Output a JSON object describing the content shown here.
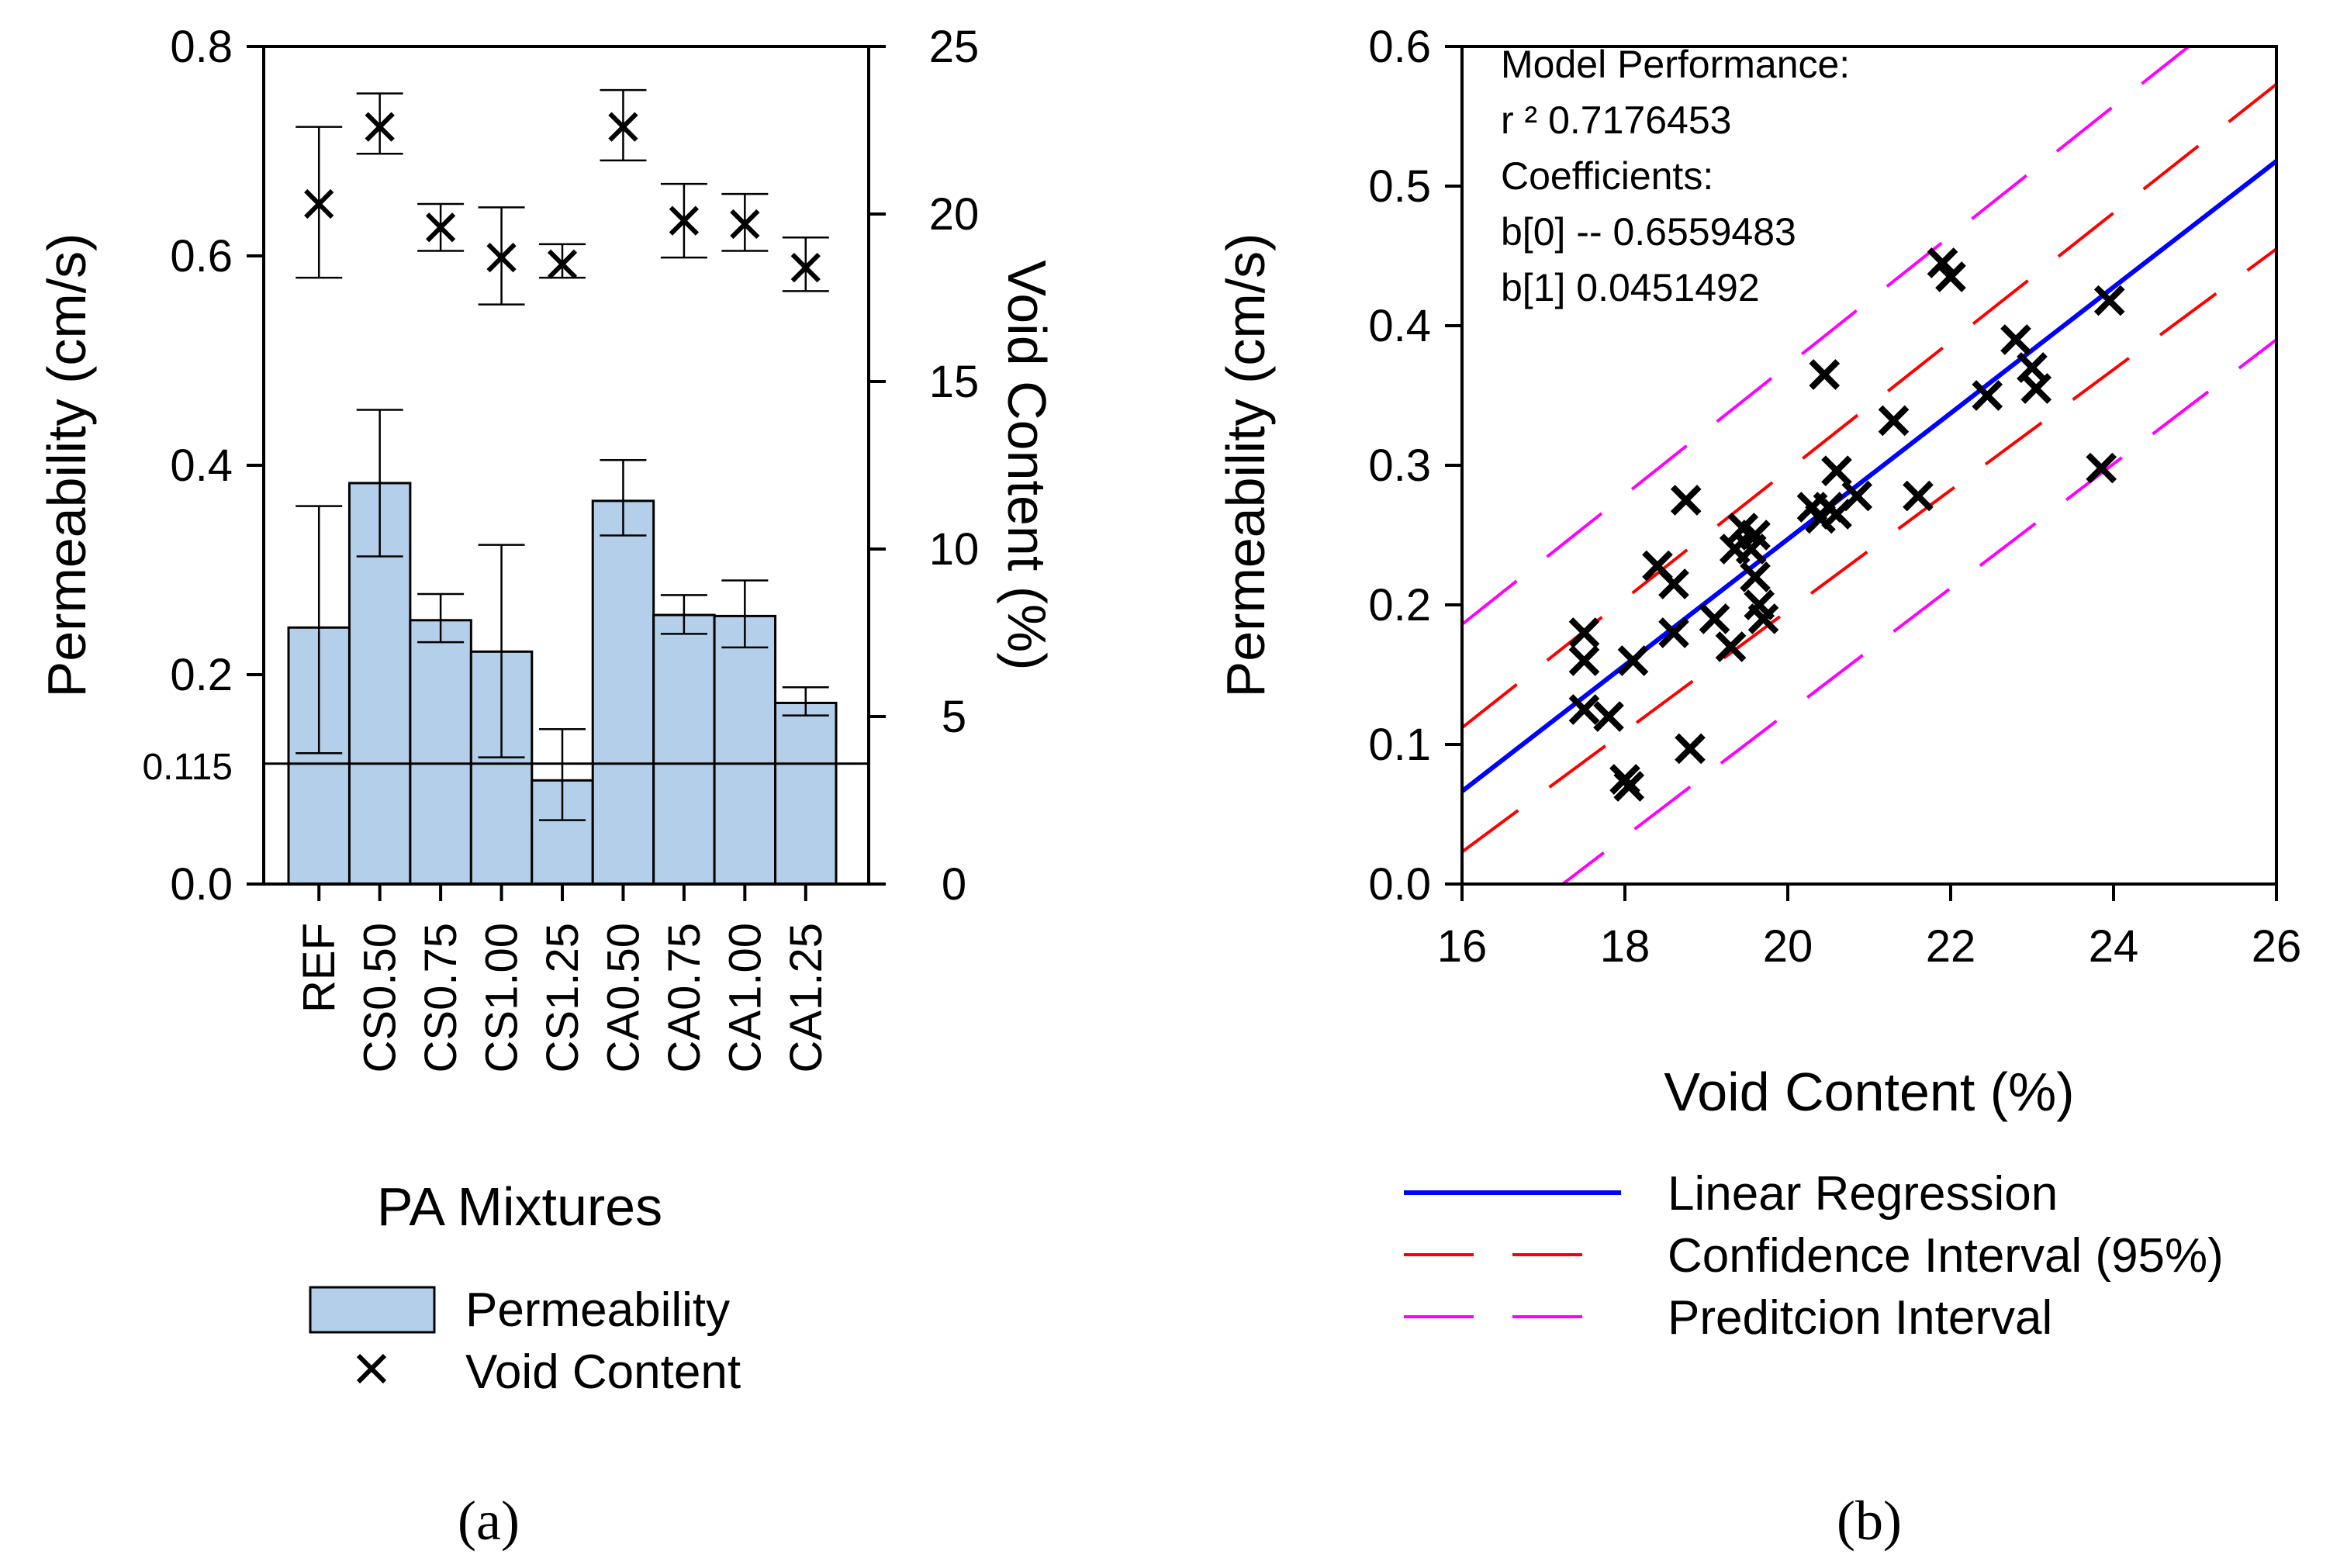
{
  "chart_data": [
    {
      "panel_label": "(a)",
      "type": "bar",
      "xlabel": "PA Mixtures",
      "ylabel": "Permeability (cm/s)",
      "y2label": "Void Content (%)",
      "ylim": [
        0,
        0.8
      ],
      "y2lim": [
        0,
        25
      ],
      "yticks": [
        "0.0",
        "0.2",
        "0.4",
        "0.6",
        "0.8"
      ],
      "y2ticks": [
        "0",
        "5",
        "10",
        "15",
        "20",
        "25"
      ],
      "categories": [
        "REF",
        "CS0.50",
        "CS0.75",
        "CS1.00",
        "CS1.25",
        "CA0.50",
        "CA0.75",
        "CA1.00",
        "CA1.25"
      ],
      "series": [
        {
          "name": "Permeability",
          "axis": "left",
          "values": [
            0.245,
            0.383,
            0.252,
            0.222,
            0.099,
            0.366,
            0.257,
            0.256,
            0.173
          ],
          "error_low": [
            0.125,
            0.313,
            0.231,
            0.121,
            0.061,
            0.333,
            0.239,
            0.226,
            0.161
          ],
          "error_high": [
            0.361,
            0.453,
            0.277,
            0.324,
            0.148,
            0.405,
            0.276,
            0.29,
            0.188
          ]
        },
        {
          "name": "Void Content",
          "axis": "right",
          "values": [
            20.3,
            22.6,
            19.6,
            18.7,
            18.5,
            22.6,
            19.8,
            19.7,
            18.4
          ],
          "error_low": [
            18.1,
            21.8,
            18.9,
            17.3,
            18.1,
            21.6,
            18.7,
            18.9,
            17.7
          ],
          "error_high": [
            22.6,
            23.6,
            20.3,
            20.2,
            19.1,
            23.7,
            20.9,
            20.6,
            19.3
          ]
        }
      ],
      "reference_line": {
        "value": 0.115,
        "label": "0.115"
      },
      "legend": {
        "position": "bottom",
        "entries": [
          "Permeability",
          "Void Content"
        ]
      },
      "grid": false,
      "colors": {
        "bar": "#b4cfea",
        "marker": "#000000"
      }
    },
    {
      "panel_label": "(b)",
      "type": "scatter",
      "xlabel": "Void Content (%)",
      "ylabel": "Permeability (cm/s)",
      "xlim": [
        16,
        26
      ],
      "ylim": [
        0,
        0.6
      ],
      "xticks": [
        "16",
        "18",
        "20",
        "22",
        "24",
        "26"
      ],
      "yticks": [
        "0.0",
        "0.1",
        "0.2",
        "0.3",
        "0.4",
        "0.5",
        "0.6"
      ],
      "points": [
        [
          17.5,
          0.18
        ],
        [
          17.5,
          0.16
        ],
        [
          17.5,
          0.125
        ],
        [
          17.8,
          0.12
        ],
        [
          18.0,
          0.075
        ],
        [
          18.05,
          0.07
        ],
        [
          18.1,
          0.16
        ],
        [
          18.4,
          0.228
        ],
        [
          18.6,
          0.18
        ],
        [
          18.6,
          0.215
        ],
        [
          18.75,
          0.275
        ],
        [
          18.8,
          0.097
        ],
        [
          19.1,
          0.19
        ],
        [
          19.3,
          0.17
        ],
        [
          19.35,
          0.24
        ],
        [
          19.45,
          0.255
        ],
        [
          19.55,
          0.24
        ],
        [
          19.6,
          0.25
        ],
        [
          19.6,
          0.22
        ],
        [
          19.65,
          0.2
        ],
        [
          19.7,
          0.19
        ],
        [
          20.3,
          0.27
        ],
        [
          20.4,
          0.262
        ],
        [
          20.45,
          0.365
        ],
        [
          20.5,
          0.27
        ],
        [
          20.6,
          0.265
        ],
        [
          20.6,
          0.296
        ],
        [
          20.85,
          0.278
        ],
        [
          21.3,
          0.332
        ],
        [
          21.6,
          0.278
        ],
        [
          21.9,
          0.445
        ],
        [
          22.0,
          0.435
        ],
        [
          22.45,
          0.35
        ],
        [
          22.8,
          0.39
        ],
        [
          23.0,
          0.37
        ],
        [
          23.05,
          0.355
        ],
        [
          23.85,
          0.298
        ],
        [
          23.95,
          0.418
        ]
      ],
      "regression": {
        "intercept": -0.6559483,
        "slope": 0.0451492
      },
      "confidence_band": {
        "at_x16": [
          0.023,
          0.112
        ],
        "at_x26": [
          0.455,
          0.573
        ]
      },
      "prediction_band": {
        "at_x16": [
          -0.055,
          0.186
        ],
        "at_x26": [
          0.39,
          0.65
        ]
      },
      "annotation": [
        "Model Performance:",
        "r ²   0.7176453",
        "Coefficients:",
        "b[0]   -- 0.6559483",
        "b[1]   0.0451492"
      ],
      "legend": {
        "position": "bottom",
        "entries": [
          "Linear Regression",
          "Confidence Interval (95%)",
          "Preditcion Interval"
        ]
      },
      "grid": false,
      "colors": {
        "regression": "#0000ff",
        "confidence": "#ff0000",
        "prediction": "#ff00ff",
        "points": "#000000"
      }
    }
  ]
}
